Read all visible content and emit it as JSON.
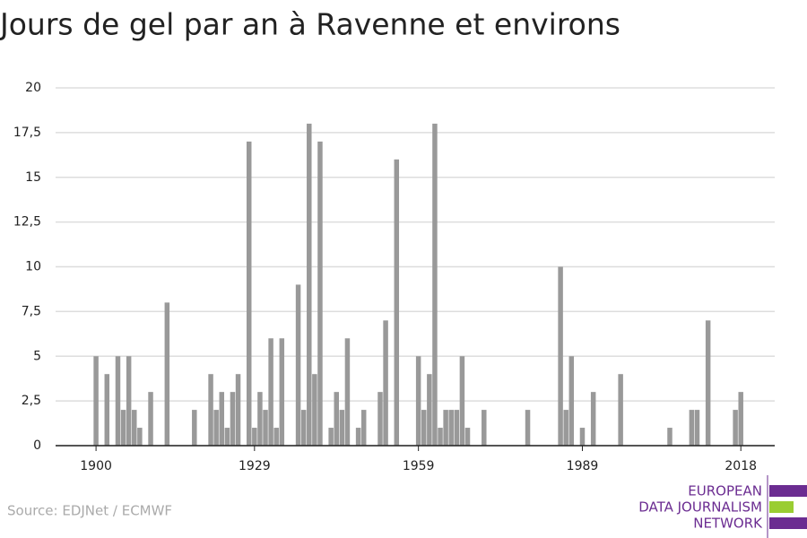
{
  "chart_data": {
    "type": "bar",
    "title": "Jours de gel par an à Ravenne et environs",
    "source": "Source: EDJNet / ECMWF",
    "logo": [
      "EUROPEAN",
      "DATA JOURNALISM",
      "NETWORK"
    ],
    "color": "#999999",
    "x": [
      1900,
      1902,
      1904,
      1905,
      1906,
      1907,
      1908,
      1910,
      1913,
      1918,
      1921,
      1922,
      1923,
      1924,
      1925,
      1926,
      1928,
      1929,
      1930,
      1931,
      1932,
      1933,
      1934,
      1937,
      1938,
      1939,
      1940,
      1941,
      1943,
      1944,
      1945,
      1946,
      1948,
      1949,
      1952,
      1953,
      1955,
      1959,
      1960,
      1961,
      1962,
      1963,
      1964,
      1965,
      1966,
      1967,
      1968,
      1971,
      1979,
      1985,
      1986,
      1987,
      1989,
      1991,
      1996,
      2005,
      2009,
      2010,
      2012,
      2017,
      2018
    ],
    "values": [
      5,
      4,
      5,
      2,
      5,
      2,
      1,
      3,
      8,
      2,
      4,
      2,
      3,
      1,
      3,
      4,
      17,
      1,
      3,
      2,
      6,
      1,
      6,
      9,
      2,
      18,
      4,
      17,
      1,
      3,
      2,
      6,
      1,
      2,
      3,
      7,
      16,
      5,
      2,
      4,
      18,
      1,
      2,
      2,
      2,
      5,
      1,
      2,
      2,
      10,
      2,
      5,
      1,
      3,
      4,
      1,
      2,
      2,
      7,
      2,
      3
    ],
    "xlim": [
      1892.6,
      2024.2
    ],
    "xticks": [
      1900,
      1929,
      1959,
      1989,
      2018
    ],
    "ylim": [
      0,
      20
    ],
    "yticks": [
      0,
      {
        "value": 2.5,
        "label": "2,5"
      },
      5,
      {
        "value": 7.5,
        "label": "7,5"
      },
      10,
      {
        "value": 12.5,
        "label": "12,5"
      },
      15,
      {
        "value": 17.5,
        "label": "17,5"
      },
      20
    ],
    "grid": true
  }
}
